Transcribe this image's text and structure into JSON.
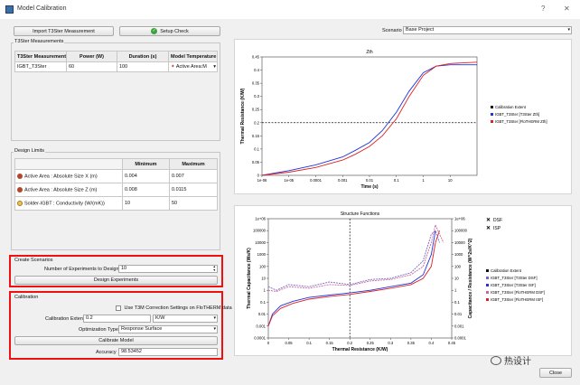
{
  "window": {
    "title": "Model Calibration",
    "help": "?",
    "close_glyph": "✕"
  },
  "toolbar": {
    "import_label": "Import T3Ster Measurement",
    "setup_label": "Setup Check",
    "scenario_label": "Scenario",
    "scenario_value": "Base Project"
  },
  "measurements": {
    "title": "T3Ster Measurements",
    "columns": [
      "T3Ster Measurement",
      "Power (W)",
      "Duration (s)",
      "Model Temperature"
    ],
    "row": {
      "name": "IGBT_T3Ster",
      "power": "60",
      "duration": "100",
      "model_temp": "Active Area:M"
    }
  },
  "design_limits": {
    "title": "Design Limits",
    "columns": [
      "Minimum",
      "Maximum"
    ],
    "rows": [
      {
        "name": "Active Area : Absolute Size X (m)",
        "min": "0.004",
        "max": "0.007"
      },
      {
        "name": "Active Area : Absolute Size Z (m)",
        "min": "0.008",
        "max": "0.0115"
      },
      {
        "name": "Solder-IGBT : Conductivity (W/(mK))",
        "min": "10",
        "max": "50"
      }
    ]
  },
  "create_scenarios": {
    "title": "Create Scenarios",
    "experiments_label": "Number of Experiments to Design",
    "experiments_value": "10",
    "design_button": "Design Experiments"
  },
  "calibration": {
    "title": "Calibration",
    "t3m_label": "Use T3M Correction Settings on FloTHERM data",
    "extent_label": "Calibration Extent",
    "extent_value": "0.2",
    "extent_unit": "K/W",
    "optimization_label": "Optimization Type",
    "optimization_value": "Response Surface",
    "calibrate_button": "Calibrate Model",
    "accuracy_label": "Accuracy",
    "accuracy_value": "98.53452"
  },
  "footer": {
    "close_button": "Close",
    "watermark": "热设计"
  },
  "colors": {
    "blue": "#2233dd",
    "red": "#dd2222",
    "pink": "#cc6699",
    "purple": "#7766cc",
    "highlight": "#ee1111"
  },
  "chart_data": [
    {
      "type": "line",
      "title": "Zth",
      "xlabel": "Time (s)",
      "ylabel": "Thermal Resistance (K/W)",
      "x_scale": "log",
      "xlim": [
        1e-06,
        100
      ],
      "ylim": [
        0,
        0.45
      ],
      "x_ticks": [
        "1e-06",
        "1e-05",
        "0.0001",
        "0.001",
        "0.01",
        "0.1",
        "1",
        "10"
      ],
      "y_ticks": [
        "0",
        "0.05",
        "0.1",
        "0.15",
        "0.2",
        "0.25",
        "0.3",
        "0.35",
        "0.4",
        "0.45"
      ],
      "calibration_extent": 0.2,
      "legend": [
        "Calibration Extent",
        "IGBT_T3Ster [T3Ster Zth]",
        "IGBT_T3Ster [FloTHERM Zth]"
      ],
      "legend_position": "right",
      "series": [
        {
          "name": "IGBT_T3Ster [T3Ster Zth]",
          "color": "#2233dd",
          "x": [
            1e-06,
            1e-05,
            0.0001,
            0.001,
            0.003,
            0.01,
            0.03,
            0.1,
            0.3,
            1,
            3,
            10,
            100
          ],
          "y": [
            0.0,
            0.018,
            0.04,
            0.07,
            0.095,
            0.125,
            0.17,
            0.24,
            0.32,
            0.39,
            0.415,
            0.42,
            0.42
          ]
        },
        {
          "name": "IGBT_T3Ster [FloTHERM Zth]",
          "color": "#dd2222",
          "x": [
            1e-06,
            1e-05,
            0.0001,
            0.001,
            0.003,
            0.01,
            0.03,
            0.1,
            0.3,
            1,
            3,
            10,
            100
          ],
          "y": [
            0.0,
            0.012,
            0.03,
            0.058,
            0.08,
            0.11,
            0.15,
            0.215,
            0.3,
            0.38,
            0.415,
            0.425,
            0.43
          ]
        }
      ]
    },
    {
      "type": "line",
      "title": "Structure Functions",
      "xlabel": "Thermal Resistance (K/W)",
      "ylabel": "Thermal Capacitance (Ws/K)",
      "ylabel_right": "Capacitance / Resistance (W^2s/K^2)",
      "y_scale": "log",
      "xlim": [
        0,
        0.45
      ],
      "ylim": [
        0.0001,
        1000000
      ],
      "x_ticks": [
        "0",
        "0.05",
        "0.1",
        "0.15",
        "0.2",
        "0.25",
        "0.3",
        "0.35",
        "0.4",
        "0.45"
      ],
      "y_ticks": [
        "0.0001",
        "0.001",
        "0.01",
        "0.1",
        "1",
        "10",
        "100",
        "1000",
        "10000",
        "100000",
        "1e+06"
      ],
      "calibration_extent": 0.2,
      "toggles": [
        "DSF",
        "ISP"
      ],
      "legend": [
        "Calibration Extent",
        "IGBT_T3Ster [T3Ster DSF]",
        "IGBT_T3Ster [T3Ster ISF]",
        "IGBT_T3Ster [FloTHERM DSF]",
        "IGBT_T3Ster [FloTHERM ISF]"
      ],
      "legend_position": "right",
      "series": [
        {
          "name": "IGBT_T3Ster [T3Ster ISF]",
          "color": "#2233dd",
          "x": [
            0.0,
            0.01,
            0.03,
            0.06,
            0.1,
            0.15,
            0.2,
            0.25,
            0.3,
            0.35,
            0.38,
            0.4,
            0.41
          ],
          "y": [
            0.001,
            0.01,
            0.05,
            0.12,
            0.25,
            0.4,
            0.6,
            1,
            2,
            4,
            20,
            1000,
            100000
          ]
        },
        {
          "name": "IGBT_T3Ster [FloTHERM ISF]",
          "color": "#dd2222",
          "x": [
            0.0,
            0.01,
            0.03,
            0.06,
            0.1,
            0.15,
            0.2,
            0.25,
            0.3,
            0.35,
            0.38,
            0.4,
            0.41,
            0.42
          ],
          "y": [
            0.001,
            0.007,
            0.03,
            0.08,
            0.18,
            0.3,
            0.45,
            0.8,
            1.5,
            3,
            10,
            100,
            10000,
            100000
          ]
        },
        {
          "name": "IGBT_T3Ster [T3Ster DSF]",
          "color": "#7766cc",
          "x": [
            0.0,
            0.02,
            0.05,
            0.1,
            0.15,
            0.2,
            0.25,
            0.3,
            0.35,
            0.38,
            0.4,
            0.41,
            0.42
          ],
          "y": [
            2,
            1,
            3,
            2,
            5,
            3,
            8,
            10,
            30,
            300,
            50000,
            100000,
            10000
          ]
        },
        {
          "name": "IGBT_T3Ster [FloTHERM DSF]",
          "color": "#cc6699",
          "x": [
            0.0,
            0.02,
            0.05,
            0.1,
            0.15,
            0.2,
            0.25,
            0.3,
            0.35,
            0.38,
            0.4,
            0.41,
            0.42,
            0.43
          ],
          "y": [
            1,
            0.8,
            2,
            1.5,
            3,
            2.5,
            6,
            8,
            20,
            100,
            10000,
            300000,
            50000,
            10000
          ]
        }
      ]
    }
  ]
}
